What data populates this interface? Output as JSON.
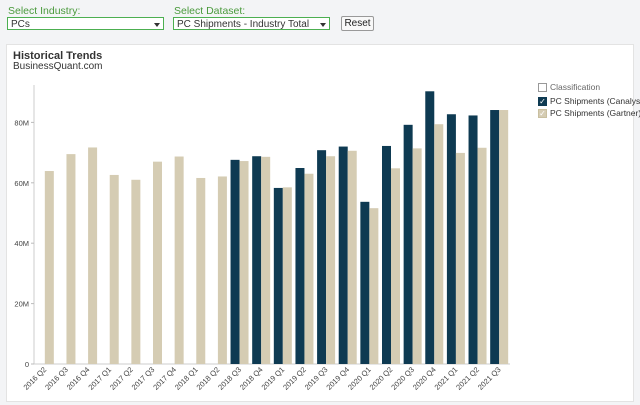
{
  "filters": {
    "industry_label": "Select Industry:",
    "industry_value": "PCs",
    "dataset_label": "Select Dataset:",
    "dataset_value": "PC Shipments - Industry Total",
    "reset_label": "Reset"
  },
  "chart": {
    "title": "Historical Trends",
    "subtitle": "BusinessQuant.com",
    "legend_title": "Classification",
    "legend_items": [
      {
        "name": "PC Shipments (Canalys)",
        "color": "#0e3a52"
      },
      {
        "name": "PC Shipments (Gartner)",
        "color": "#d5ccb3"
      }
    ]
  },
  "chart_data": {
    "type": "bar",
    "categories": [
      "2016 Q2",
      "2016 Q3",
      "2016 Q4",
      "2017 Q1",
      "2017 Q2",
      "2017 Q3",
      "2017 Q4",
      "2018 Q1",
      "2018 Q2",
      "2018 Q3",
      "2018 Q4",
      "2019 Q1",
      "2019 Q2",
      "2019 Q3",
      "2019 Q4",
      "2020 Q1",
      "2020 Q2",
      "2020 Q3",
      "2020 Q4",
      "2021 Q1",
      "2021 Q2",
      "2021 Q3"
    ],
    "series": [
      {
        "name": "PC Shipments (Canalys)",
        "color": "#0e3a52",
        "values": [
          null,
          null,
          null,
          null,
          null,
          null,
          null,
          null,
          null,
          67.6,
          68.8,
          58.3,
          64.9,
          70.8,
          72.0,
          53.7,
          72.2,
          79.2,
          90.3,
          82.7,
          82.3,
          84.1
        ]
      },
      {
        "name": "PC Shipments (Gartner)",
        "color": "#d5ccb3",
        "values": [
          63.9,
          69.5,
          71.7,
          62.6,
          61.0,
          67.0,
          68.7,
          61.6,
          62.1,
          67.2,
          68.6,
          58.5,
          63.0,
          68.8,
          70.6,
          51.6,
          64.8,
          71.4,
          79.4,
          69.9,
          71.6,
          84.1
        ]
      }
    ],
    "y_ticks": [
      "0",
      "20M",
      "40M",
      "60M",
      "80M"
    ],
    "ylim": [
      0,
      95
    ],
    "grid": false,
    "legend_position": "right"
  }
}
